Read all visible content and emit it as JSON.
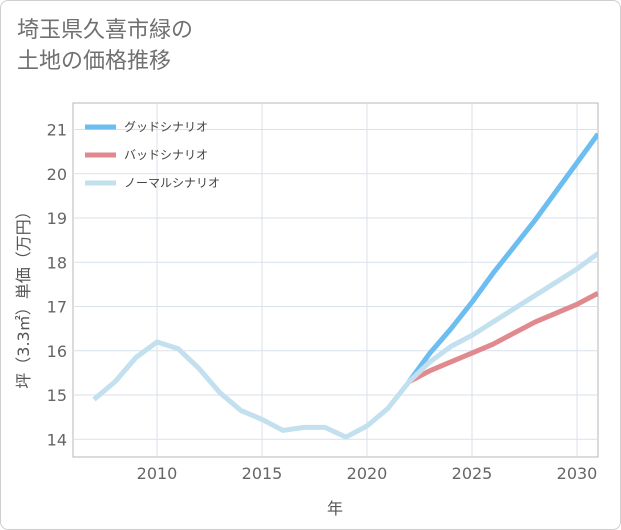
{
  "title_lines": [
    "埼玉県久喜市緑の",
    "土地の価格推移"
  ],
  "chart_data": {
    "type": "line",
    "title": "埼玉県久喜市緑の土地の価格推移",
    "xlabel": "年",
    "ylabel": "坪（3.3㎡）単価（万円）",
    "xlim": [
      2006,
      2031
    ],
    "ylim": [
      13.6,
      21.6
    ],
    "xticks": [
      2010,
      2015,
      2020,
      2025,
      2030
    ],
    "yticks": [
      14,
      15,
      16,
      17,
      18,
      19,
      20,
      21
    ],
    "grid": true,
    "legend_position": "top-left",
    "series": [
      {
        "name": "グッドシナリオ",
        "color": "#6cbdf0",
        "x": [
          2022,
          2023,
          2024,
          2025,
          2026,
          2027,
          2028,
          2029,
          2030,
          2031
        ],
        "values": [
          15.3,
          15.95,
          16.5,
          17.1,
          17.75,
          18.35,
          18.95,
          19.6,
          20.25,
          20.9
        ]
      },
      {
        "name": "バッドシナリオ",
        "color": "#e08a8f",
        "x": [
          2022,
          2023,
          2024,
          2025,
          2026,
          2027,
          2028,
          2029,
          2030,
          2031
        ],
        "values": [
          15.3,
          15.55,
          15.75,
          15.95,
          16.15,
          16.4,
          16.65,
          16.85,
          17.05,
          17.3
        ]
      },
      {
        "name": "ノーマルシナリオ",
        "color": "#c2e0ee",
        "x": [
          2007,
          2008,
          2009,
          2010,
          2011,
          2012,
          2013,
          2014,
          2015,
          2016,
          2017,
          2018,
          2019,
          2020,
          2021,
          2022,
          2023,
          2024,
          2025,
          2026,
          2027,
          2028,
          2029,
          2030,
          2031
        ],
        "values": [
          14.9,
          15.3,
          15.85,
          16.2,
          16.05,
          15.6,
          15.05,
          14.65,
          14.45,
          14.2,
          14.27,
          14.27,
          14.05,
          14.3,
          14.7,
          15.3,
          15.75,
          16.1,
          16.35,
          16.65,
          16.95,
          17.25,
          17.55,
          17.85,
          18.2
        ]
      }
    ]
  }
}
